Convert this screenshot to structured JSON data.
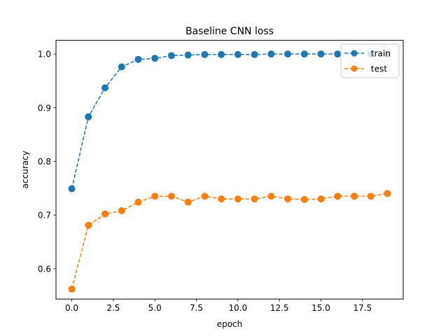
{
  "chart_data": {
    "type": "line",
    "title": "Baseline CNN loss",
    "xlabel": "epoch",
    "ylabel": "accuracy",
    "xlim": [
      -0.95,
      19.95
    ],
    "ylim": [
      0.5435,
      1.0255
    ],
    "xticks": [
      0.0,
      2.5,
      5.0,
      7.5,
      10.0,
      12.5,
      15.0,
      17.5
    ],
    "xtick_labels": [
      "0.0",
      "2.5",
      "5.0",
      "7.5",
      "10.0",
      "12.5",
      "15.0",
      "17.5"
    ],
    "yticks": [
      0.6,
      0.7,
      0.8,
      0.9,
      1.0
    ],
    "ytick_labels": [
      "0.6",
      "0.7",
      "0.8",
      "0.9",
      "1.0"
    ],
    "grid": false,
    "legend_position": "top-right",
    "x": [
      0,
      1,
      2,
      3,
      4,
      5,
      6,
      7,
      8,
      9,
      10,
      11,
      12,
      13,
      14,
      15,
      16,
      17,
      18,
      19
    ],
    "series": [
      {
        "name": "train",
        "color": "#1f77b4",
        "values": [
          0.749,
          0.883,
          0.937,
          0.976,
          0.99,
          0.992,
          0.997,
          0.998,
          0.999,
          0.999,
          0.999,
          0.999,
          1.0,
          1.0,
          1.0,
          1.0,
          1.0,
          1.0,
          1.0,
          1.0
        ]
      },
      {
        "name": "test",
        "color": "#ff7f0e",
        "values": [
          0.562,
          0.681,
          0.702,
          0.708,
          0.724,
          0.735,
          0.735,
          0.724,
          0.735,
          0.73,
          0.73,
          0.73,
          0.735,
          0.73,
          0.729,
          0.73,
          0.735,
          0.735,
          0.735,
          0.74
        ]
      }
    ]
  }
}
